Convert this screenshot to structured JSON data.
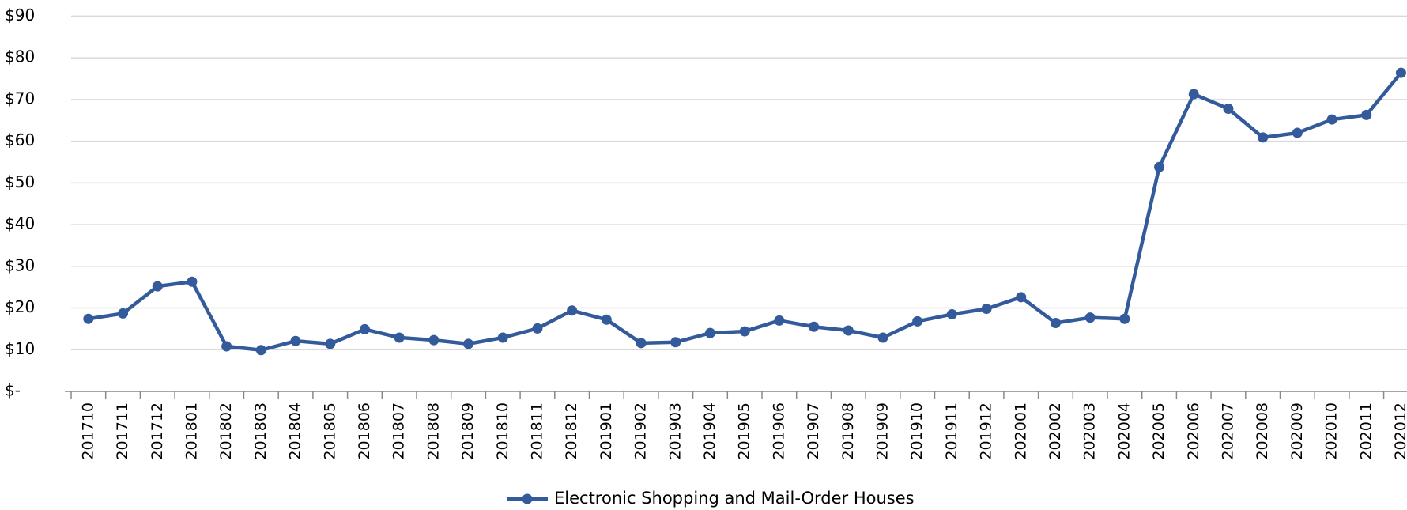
{
  "chart_data": {
    "type": "line",
    "categories": [
      "201710",
      "201711",
      "201712",
      "201801",
      "201802",
      "201803",
      "201804",
      "201805",
      "201806",
      "201807",
      "201808",
      "201809",
      "201810",
      "201811",
      "201812",
      "201901",
      "201902",
      "201903",
      "201904",
      "201905",
      "201906",
      "201907",
      "201908",
      "201909",
      "201910",
      "201911",
      "201912",
      "202001",
      "202002",
      "202003",
      "202004",
      "202005",
      "202006",
      "202007",
      "202008",
      "202009",
      "202010",
      "202011",
      "202012"
    ],
    "series": [
      {
        "name": "Electronic Shopping and Mail-Order Houses",
        "color": "#335a9a",
        "values": [
          17.4,
          18.7,
          25.2,
          26.3,
          10.8,
          9.9,
          12.1,
          11.4,
          14.9,
          12.9,
          12.3,
          11.4,
          12.9,
          15.1,
          19.4,
          17.2,
          11.6,
          11.8,
          14.0,
          14.4,
          17.0,
          15.5,
          14.6,
          12.9,
          16.8,
          18.5,
          19.8,
          22.6,
          16.4,
          17.7,
          17.4,
          53.8,
          71.3,
          67.8,
          60.9,
          62.0,
          65.2,
          66.3,
          76.4
        ]
      }
    ],
    "ylim": [
      0,
      90
    ],
    "yticks": [
      {
        "value": 0,
        "label": "$-"
      },
      {
        "value": 10,
        "label": "$10"
      },
      {
        "value": 20,
        "label": "$20"
      },
      {
        "value": 30,
        "label": "$30"
      },
      {
        "value": 40,
        "label": "$40"
      },
      {
        "value": 50,
        "label": "$50"
      },
      {
        "value": 60,
        "label": "$60"
      },
      {
        "value": 70,
        "label": "$70"
      },
      {
        "value": 80,
        "label": "$80"
      },
      {
        "value": 90,
        "label": "$90"
      }
    ],
    "grid": true,
    "legend": "bottom"
  }
}
